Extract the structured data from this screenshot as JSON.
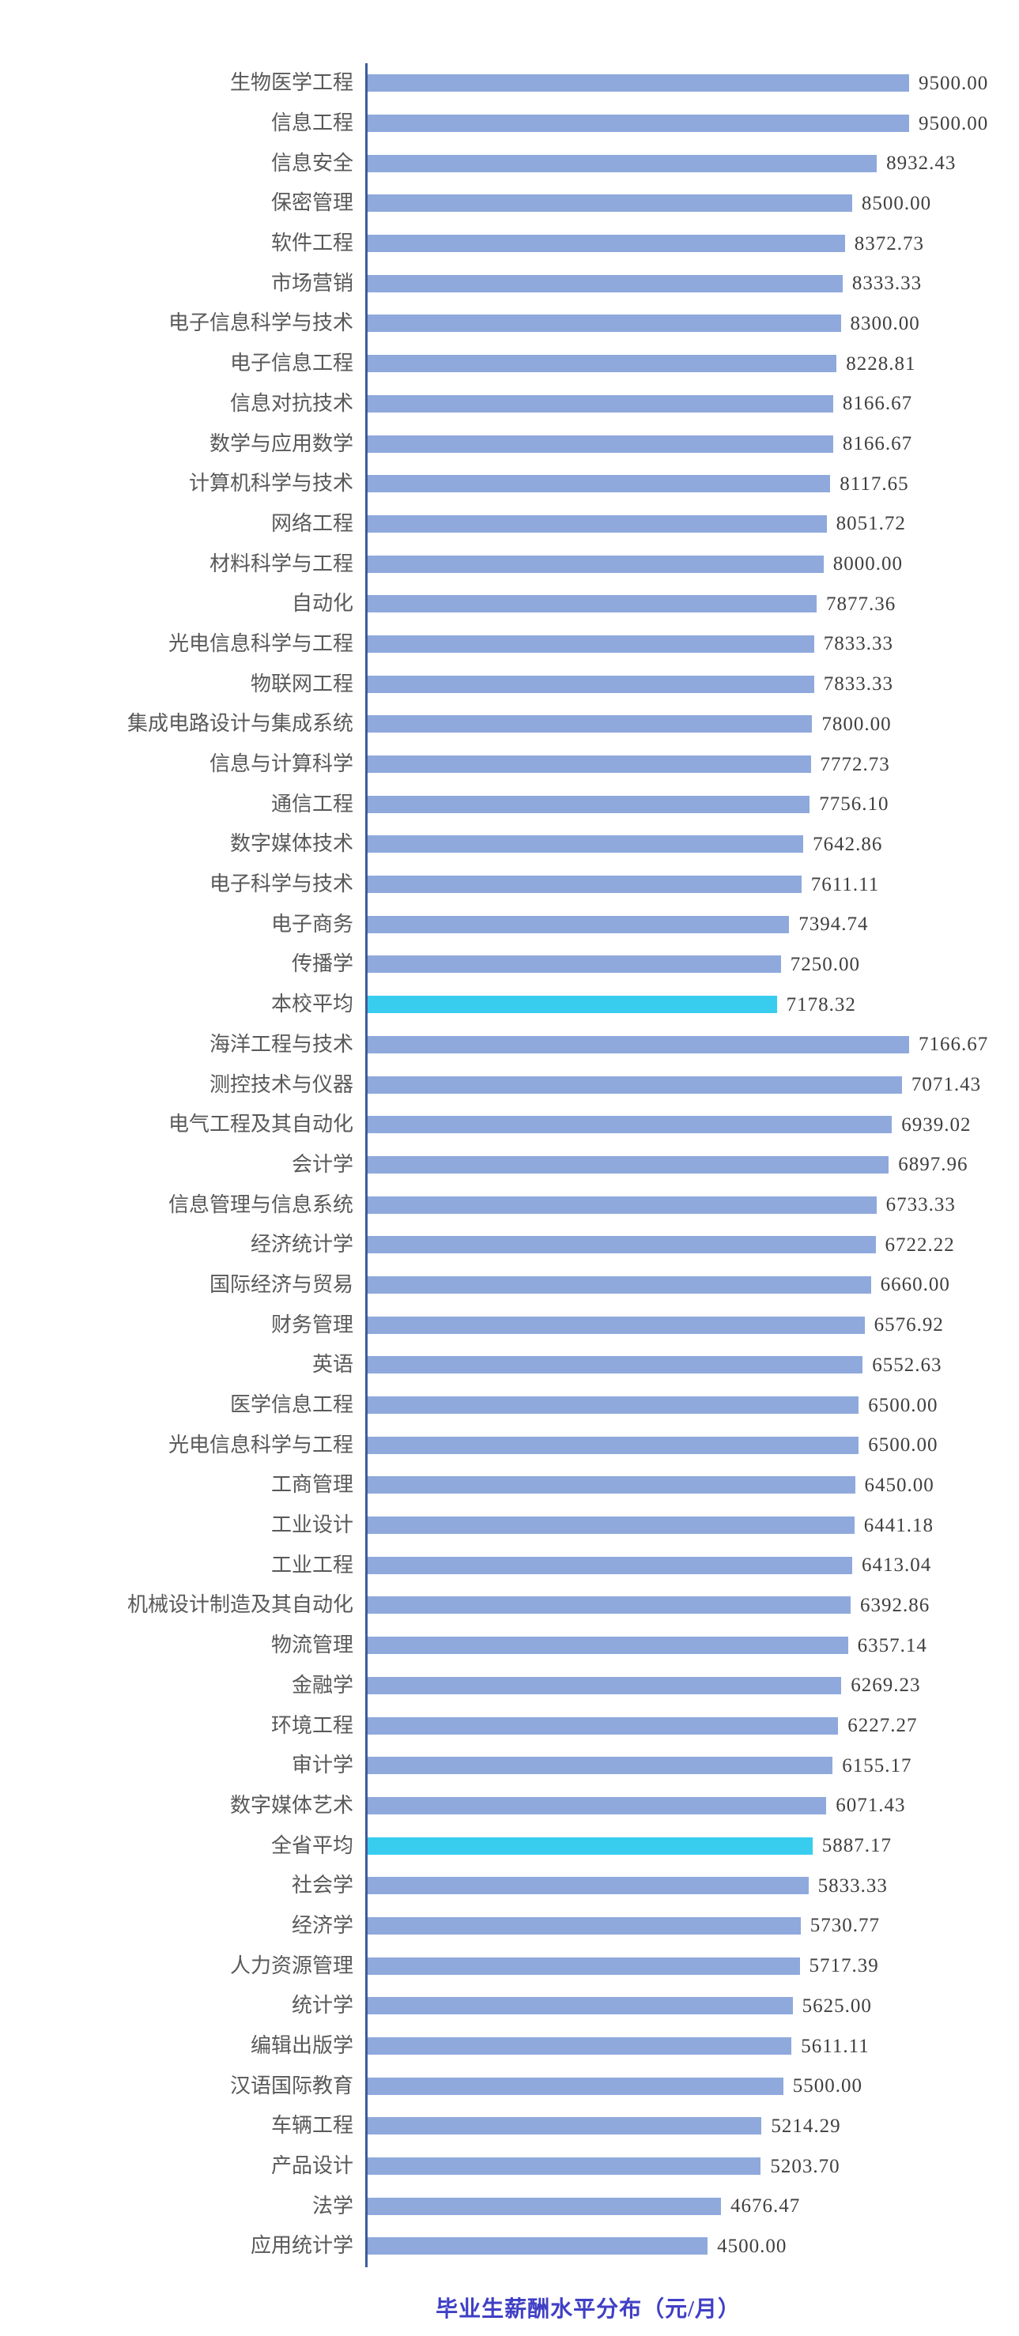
{
  "title": "毕业生薪酬水平分布（元/月）",
  "colors": {
    "bar": "#8FA9DC",
    "highlight": "#38CDEE",
    "axis": "#3D5C99",
    "label_text": "#595959",
    "value_text": "#3F3F3F",
    "title_text": "#3F3FC5"
  },
  "chart_data": {
    "type": "bar",
    "orientation": "horizontal",
    "title": "毕业生薪酬水平分布（元/月）",
    "value_unit": "元/月",
    "value_axis_visible": false,
    "grid": false,
    "legend": "none",
    "scale_note": "Two stacked chart segments share one category axis; each segment is scaled to its own maximum bar (top segment max 9500.00, bottom segment max 7166.67).",
    "highlighted_categories": [
      "本校平均",
      "全省平均"
    ],
    "rows": [
      {
        "label": "生物医学工程",
        "value": 9500.0,
        "display": "9500.00",
        "group": "top",
        "highlight": false
      },
      {
        "label": "信息工程",
        "value": 9500.0,
        "display": "9500.00",
        "group": "top",
        "highlight": false
      },
      {
        "label": "信息安全",
        "value": 8932.43,
        "display": "8932.43",
        "group": "top",
        "highlight": false
      },
      {
        "label": "保密管理",
        "value": 8500.0,
        "display": "8500.00",
        "group": "top",
        "highlight": false
      },
      {
        "label": "软件工程",
        "value": 8372.73,
        "display": "8372.73",
        "group": "top",
        "highlight": false
      },
      {
        "label": "市场营销",
        "value": 8333.33,
        "display": "8333.33",
        "group": "top",
        "highlight": false
      },
      {
        "label": "电子信息科学与技术",
        "value": 8300.0,
        "display": "8300.00",
        "group": "top",
        "highlight": false
      },
      {
        "label": "电子信息工程",
        "value": 8228.81,
        "display": "8228.81",
        "group": "top",
        "highlight": false
      },
      {
        "label": "信息对抗技术",
        "value": 8166.67,
        "display": "8166.67",
        "group": "top",
        "highlight": false
      },
      {
        "label": "数学与应用数学",
        "value": 8166.67,
        "display": "8166.67",
        "group": "top",
        "highlight": false
      },
      {
        "label": "计算机科学与技术",
        "value": 8117.65,
        "display": "8117.65",
        "group": "top",
        "highlight": false
      },
      {
        "label": "网络工程",
        "value": 8051.72,
        "display": "8051.72",
        "group": "top",
        "highlight": false
      },
      {
        "label": "材料科学与工程",
        "value": 8000.0,
        "display": "8000.00",
        "group": "top",
        "highlight": false
      },
      {
        "label": "自动化",
        "value": 7877.36,
        "display": "7877.36",
        "group": "top",
        "highlight": false
      },
      {
        "label": "光电信息科学与工程",
        "value": 7833.33,
        "display": "7833.33",
        "group": "top",
        "highlight": false
      },
      {
        "label": "物联网工程",
        "value": 7833.33,
        "display": "7833.33",
        "group": "top",
        "highlight": false
      },
      {
        "label": "集成电路设计与集成系统",
        "value": 7800.0,
        "display": "7800.00",
        "group": "top",
        "highlight": false
      },
      {
        "label": "信息与计算科学",
        "value": 7772.73,
        "display": "7772.73",
        "group": "top",
        "highlight": false
      },
      {
        "label": "通信工程",
        "value": 7756.1,
        "display": "7756.10",
        "group": "top",
        "highlight": false
      },
      {
        "label": "数字媒体技术",
        "value": 7642.86,
        "display": "7642.86",
        "group": "top",
        "highlight": false
      },
      {
        "label": "电子科学与技术",
        "value": 7611.11,
        "display": "7611.11",
        "group": "top",
        "highlight": false
      },
      {
        "label": "电子商务",
        "value": 7394.74,
        "display": "7394.74",
        "group": "top",
        "highlight": false
      },
      {
        "label": "传播学",
        "value": 7250.0,
        "display": "7250.00",
        "group": "top",
        "highlight": false
      },
      {
        "label": "本校平均",
        "value": 7178.32,
        "display": "7178.32",
        "group": "top",
        "highlight": true
      },
      {
        "label": "海洋工程与技术",
        "value": 7166.67,
        "display": "7166.67",
        "group": "bottom",
        "highlight": false
      },
      {
        "label": "测控技术与仪器",
        "value": 7071.43,
        "display": "7071.43",
        "group": "bottom",
        "highlight": false
      },
      {
        "label": "电气工程及其自动化",
        "value": 6939.02,
        "display": "6939.02",
        "group": "bottom",
        "highlight": false
      },
      {
        "label": "会计学",
        "value": 6897.96,
        "display": "6897.96",
        "group": "bottom",
        "highlight": false
      },
      {
        "label": "信息管理与信息系统",
        "value": 6733.33,
        "display": "6733.33",
        "group": "bottom",
        "highlight": false
      },
      {
        "label": "经济统计学",
        "value": 6722.22,
        "display": "6722.22",
        "group": "bottom",
        "highlight": false
      },
      {
        "label": "国际经济与贸易",
        "value": 6660.0,
        "display": "6660.00",
        "group": "bottom",
        "highlight": false
      },
      {
        "label": "财务管理",
        "value": 6576.92,
        "display": "6576.92",
        "group": "bottom",
        "highlight": false
      },
      {
        "label": "英语",
        "value": 6552.63,
        "display": "6552.63",
        "group": "bottom",
        "highlight": false
      },
      {
        "label": "医学信息工程",
        "value": 6500.0,
        "display": "6500.00",
        "group": "bottom",
        "highlight": false
      },
      {
        "label": "光电信息科学与工程",
        "value": 6500.0,
        "display": "6500.00",
        "group": "bottom",
        "highlight": false
      },
      {
        "label": "工商管理",
        "value": 6450.0,
        "display": "6450.00",
        "group": "bottom",
        "highlight": false
      },
      {
        "label": "工业设计",
        "value": 6441.18,
        "display": "6441.18",
        "group": "bottom",
        "highlight": false
      },
      {
        "label": "工业工程",
        "value": 6413.04,
        "display": "6413.04",
        "group": "bottom",
        "highlight": false
      },
      {
        "label": "机械设计制造及其自动化",
        "value": 6392.86,
        "display": "6392.86",
        "group": "bottom",
        "highlight": false
      },
      {
        "label": "物流管理",
        "value": 6357.14,
        "display": "6357.14",
        "group": "bottom",
        "highlight": false
      },
      {
        "label": "金融学",
        "value": 6269.23,
        "display": "6269.23",
        "group": "bottom",
        "highlight": false
      },
      {
        "label": "环境工程",
        "value": 6227.27,
        "display": "6227.27",
        "group": "bottom",
        "highlight": false
      },
      {
        "label": "审计学",
        "value": 6155.17,
        "display": "6155.17",
        "group": "bottom",
        "highlight": false
      },
      {
        "label": "数字媒体艺术",
        "value": 6071.43,
        "display": "6071.43",
        "group": "bottom",
        "highlight": false
      },
      {
        "label": "全省平均",
        "value": 5887.17,
        "display": "5887.17",
        "group": "bottom",
        "highlight": true
      },
      {
        "label": "社会学",
        "value": 5833.33,
        "display": "5833.33",
        "group": "bottom",
        "highlight": false
      },
      {
        "label": "经济学",
        "value": 5730.77,
        "display": "5730.77",
        "group": "bottom",
        "highlight": false
      },
      {
        "label": "人力资源管理",
        "value": 5717.39,
        "display": "5717.39",
        "group": "bottom",
        "highlight": false
      },
      {
        "label": "统计学",
        "value": 5625.0,
        "display": "5625.00",
        "group": "bottom",
        "highlight": false
      },
      {
        "label": "编辑出版学",
        "value": 5611.11,
        "display": "5611.11",
        "group": "bottom",
        "highlight": false
      },
      {
        "label": "汉语国际教育",
        "value": 5500.0,
        "display": "5500.00",
        "group": "bottom",
        "highlight": false
      },
      {
        "label": "车辆工程",
        "value": 5214.29,
        "display": "5214.29",
        "group": "bottom",
        "highlight": false
      },
      {
        "label": "产品设计",
        "value": 5203.7,
        "display": "5203.70",
        "group": "bottom",
        "highlight": false
      },
      {
        "label": "法学",
        "value": 4676.47,
        "display": "4676.47",
        "group": "bottom",
        "highlight": false
      },
      {
        "label": "应用统计学",
        "value": 4500.0,
        "display": "4500.00",
        "group": "bottom",
        "highlight": false
      }
    ]
  }
}
